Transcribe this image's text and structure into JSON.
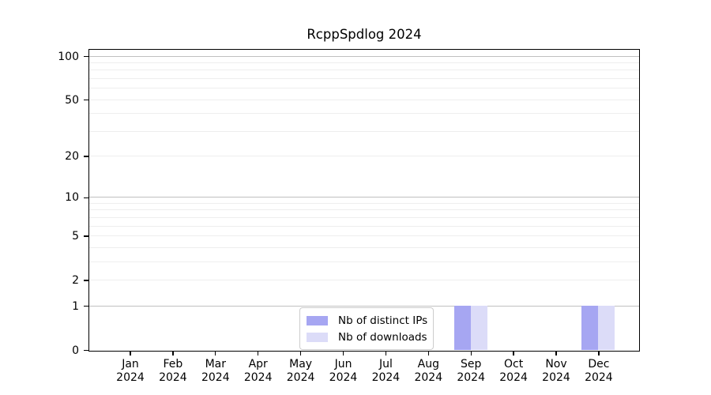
{
  "chart_data": {
    "type": "bar",
    "title": "RcppSpdlog 2024",
    "categories": [
      "Jan 2024",
      "Feb 2024",
      "Mar 2024",
      "Apr 2024",
      "May 2024",
      "Jun 2024",
      "Jul 2024",
      "Aug 2024",
      "Sep 2024",
      "Oct 2024",
      "Nov 2024",
      "Dec 2024"
    ],
    "series": [
      {
        "name": "Nb of distinct IPs",
        "color": "#a6a6f2",
        "values": [
          0,
          0,
          0,
          0,
          0,
          0,
          0,
          0,
          1,
          0,
          0,
          1
        ]
      },
      {
        "name": "Nb of downloads",
        "color": "#dcdcf8",
        "values": [
          0,
          0,
          0,
          0,
          0,
          0,
          0,
          0,
          1,
          0,
          0,
          1
        ]
      }
    ],
    "y_scale": "log1p",
    "y_axis": {
      "tick_values": [
        0,
        1,
        2,
        5,
        10,
        20,
        50,
        100
      ],
      "emphasized_gridline_values": [
        1,
        10,
        100
      ],
      "minor_gridline_values": [
        3,
        4,
        6,
        7,
        8,
        9,
        30,
        40,
        60,
        70,
        80,
        90
      ],
      "max": 100
    },
    "grid": true,
    "legend_position": "lower center",
    "colors": {
      "grid_emphasized": "#c0c0c0",
      "grid_faint": "#eeeeee",
      "axis": "#000000",
      "background": "#ffffff",
      "text": "#000000"
    }
  }
}
